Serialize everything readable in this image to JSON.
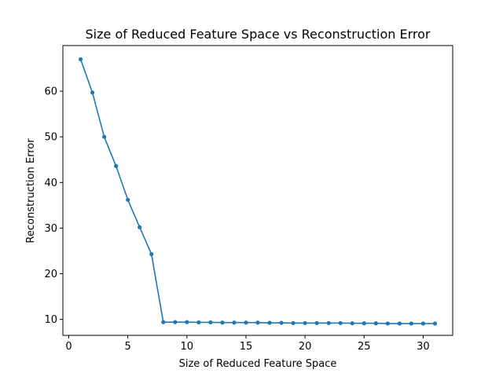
{
  "chart_data": {
    "type": "line",
    "title": "Size of Reduced Feature Space vs Reconstruction Error",
    "xlabel": "Size of Reduced Feature Space",
    "ylabel": "Reconstruction Error",
    "xlim": [
      -0.5,
      32.5
    ],
    "ylim": [
      6.5,
      70.0
    ],
    "xticks": [
      0,
      5,
      10,
      15,
      20,
      25,
      30
    ],
    "yticks": [
      10,
      20,
      30,
      40,
      50,
      60
    ],
    "grid": false,
    "legend": "none",
    "line_color": "#1f77b4",
    "series": [
      {
        "x": [
          1,
          2,
          3,
          4,
          5,
          6,
          7,
          8,
          9,
          10,
          11,
          12,
          13,
          14,
          15,
          16,
          17,
          18,
          19,
          20,
          21,
          22,
          23,
          24,
          25,
          26,
          27,
          28,
          29,
          30,
          31
        ],
        "values": [
          67.0,
          59.7,
          50.0,
          43.6,
          36.2,
          30.2,
          24.3,
          9.4,
          9.4,
          9.4,
          9.35,
          9.35,
          9.3,
          9.3,
          9.3,
          9.3,
          9.25,
          9.25,
          9.2,
          9.2,
          9.2,
          9.2,
          9.2,
          9.15,
          9.15,
          9.15,
          9.1,
          9.1,
          9.1,
          9.1,
          9.1
        ]
      }
    ]
  }
}
